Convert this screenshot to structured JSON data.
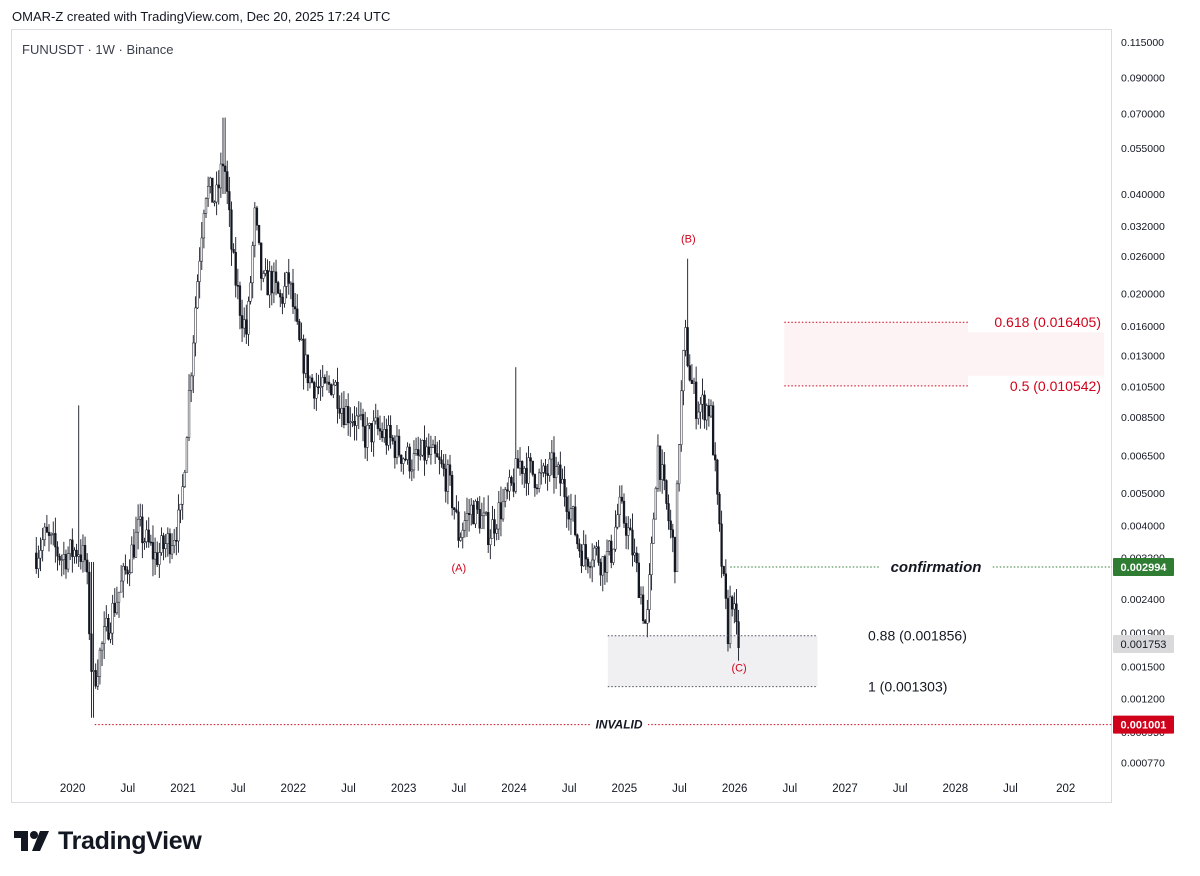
{
  "header": {
    "text": "OMAR-Z created with TradingView.com, Dec 20, 2025 17:24 UTC"
  },
  "symbol": {
    "text": "FUNUSDT · 1W · Binance"
  },
  "footer": {
    "brand": "TradingView"
  },
  "colors": {
    "red": "#d0021b",
    "green": "#2e7d32",
    "candle": "#131722",
    "zone_gray": "#f0f0f2",
    "zone_pink": "#fdf3f5"
  },
  "chart_data": {
    "type": "candlestick",
    "scale": "log",
    "ylim": [
      0.00072,
      0.125
    ],
    "xlim": [
      2019.45,
      2029.42
    ],
    "y_ticks": [
      "0.115000",
      "0.090000",
      "0.070000",
      "0.055000",
      "0.040000",
      "0.032000",
      "0.026000",
      "0.020000",
      "0.016000",
      "0.013000",
      "0.010500",
      "0.008500",
      "0.006500",
      "0.005000",
      "0.004000",
      "0.003200",
      "0.002400",
      "0.001900",
      "0.001500",
      "0.001200",
      "0.000950",
      "0.000770"
    ],
    "x_ticks": [
      {
        "t": 2020.0,
        "label": "2020"
      },
      {
        "t": 2020.5,
        "label": "Jul"
      },
      {
        "t": 2021.0,
        "label": "2021"
      },
      {
        "t": 2021.5,
        "label": "Jul"
      },
      {
        "t": 2022.0,
        "label": "2022"
      },
      {
        "t": 2022.5,
        "label": "Jul"
      },
      {
        "t": 2023.0,
        "label": "2023"
      },
      {
        "t": 2023.5,
        "label": "Jul"
      },
      {
        "t": 2024.0,
        "label": "2024"
      },
      {
        "t": 2024.5,
        "label": "Jul"
      },
      {
        "t": 2025.0,
        "label": "2025"
      },
      {
        "t": 2025.5,
        "label": "Jul"
      },
      {
        "t": 2026.0,
        "label": "2026"
      },
      {
        "t": 2026.5,
        "label": "Jul"
      },
      {
        "t": 2027.0,
        "label": "2027"
      },
      {
        "t": 2027.5,
        "label": "Jul"
      },
      {
        "t": 2028.0,
        "label": "2028"
      },
      {
        "t": 2028.5,
        "label": "Jul"
      },
      {
        "t": 2029.0,
        "label": "202"
      }
    ],
    "price_path": [
      [
        2019.67,
        0.0033
      ],
      [
        2019.75,
        0.0037
      ],
      [
        2019.9,
        0.0032
      ],
      [
        2020.05,
        0.0034
      ],
      [
        2020.12,
        0.0031
      ],
      [
        2020.18,
        0.0013
      ],
      [
        2020.24,
        0.0016
      ],
      [
        2020.32,
        0.002
      ],
      [
        2020.45,
        0.0027
      ],
      [
        2020.6,
        0.0039
      ],
      [
        2020.75,
        0.0032
      ],
      [
        2020.9,
        0.0037
      ],
      [
        2020.98,
        0.0042
      ],
      [
        2021.05,
        0.0095
      ],
      [
        2021.12,
        0.02
      ],
      [
        2021.2,
        0.042
      ],
      [
        2021.3,
        0.038
      ],
      [
        2021.37,
        0.052
      ],
      [
        2021.45,
        0.025
      ],
      [
        2021.52,
        0.018
      ],
      [
        2021.58,
        0.015
      ],
      [
        2021.65,
        0.034
      ],
      [
        2021.72,
        0.021
      ],
      [
        2021.8,
        0.022
      ],
      [
        2021.88,
        0.019
      ],
      [
        2021.96,
        0.022
      ],
      [
        2022.05,
        0.014
      ],
      [
        2022.15,
        0.011
      ],
      [
        2022.28,
        0.01
      ],
      [
        2022.36,
        0.011
      ],
      [
        2022.45,
        0.009
      ],
      [
        2022.55,
        0.0085
      ],
      [
        2022.65,
        0.0074
      ],
      [
        2022.75,
        0.0078
      ],
      [
        2022.88,
        0.0072
      ],
      [
        2023.0,
        0.0065
      ],
      [
        2023.1,
        0.0062
      ],
      [
        2023.2,
        0.0066
      ],
      [
        2023.3,
        0.0062
      ],
      [
        2023.4,
        0.0055
      ],
      [
        2023.46,
        0.0045
      ],
      [
        2023.5,
        0.0037
      ],
      [
        2023.55,
        0.0041
      ],
      [
        2023.62,
        0.0045
      ],
      [
        2023.7,
        0.0042
      ],
      [
        2023.78,
        0.0038
      ],
      [
        2023.86,
        0.0044
      ],
      [
        2023.92,
        0.0047
      ],
      [
        2023.98,
        0.0052
      ],
      [
        2024.05,
        0.0062
      ],
      [
        2024.15,
        0.0058
      ],
      [
        2024.25,
        0.0055
      ],
      [
        2024.35,
        0.006
      ],
      [
        2024.45,
        0.0052
      ],
      [
        2024.52,
        0.0044
      ],
      [
        2024.58,
        0.0035
      ],
      [
        2024.65,
        0.0032
      ],
      [
        2024.72,
        0.0034
      ],
      [
        2024.8,
        0.0031
      ],
      [
        2024.88,
        0.0033
      ],
      [
        2024.95,
        0.0045
      ],
      [
        2025.02,
        0.004
      ],
      [
        2025.08,
        0.0033
      ],
      [
        2025.14,
        0.0026
      ],
      [
        2025.2,
        0.0019
      ],
      [
        2025.25,
        0.0034
      ],
      [
        2025.3,
        0.007
      ],
      [
        2025.36,
        0.005
      ],
      [
        2025.42,
        0.0038
      ],
      [
        2025.46,
        0.0032
      ],
      [
        2025.5,
        0.008
      ],
      [
        2025.55,
        0.015
      ],
      [
        2025.6,
        0.011
      ],
      [
        2025.65,
        0.0093
      ],
      [
        2025.72,
        0.0092
      ],
      [
        2025.78,
        0.009
      ],
      [
        2025.82,
        0.006
      ],
      [
        2025.86,
        0.0038
      ],
      [
        2025.9,
        0.0026
      ],
      [
        2025.94,
        0.0019
      ],
      [
        2025.97,
        0.0026
      ],
      [
        2026.01,
        0.0019
      ],
      [
        2026.04,
        0.00175
      ]
    ],
    "extremes": [
      {
        "t": 2020.18,
        "high": 0.0031,
        "low": 0.00105
      },
      {
        "t": 2020.06,
        "high": 0.0092,
        "low": 0.0031
      },
      {
        "t": 2021.37,
        "high": 0.068,
        "low": 0.04
      },
      {
        "t": 2025.58,
        "high": 0.0255,
        "low": 0.014
      },
      {
        "t": 2024.02,
        "high": 0.012,
        "low": 0.0055
      },
      {
        "t": 2026.04,
        "high": 0.0019,
        "low": 0.00163
      }
    ],
    "wave_labels": [
      {
        "text": "(A)",
        "t": 2023.5,
        "y": 0.0029
      },
      {
        "text": "(B)",
        "t": 2025.58,
        "y": 0.0285
      },
      {
        "text": "(C)",
        "t": 2026.04,
        "y": 0.00145
      }
    ],
    "levels": [
      {
        "label": "0.618 (0.016405)",
        "value": 0.016405,
        "color": "red",
        "t_start": 2026.45,
        "t_end": 2029.35
      },
      {
        "label": "0.5 (0.010542)",
        "value": 0.010542,
        "color": "red",
        "t_start": 2026.45,
        "t_end": 2029.35
      },
      {
        "label": "confirmation",
        "value": 0.002994,
        "color": "green",
        "t_start": 2025.96,
        "t_end": 2029.42
      },
      {
        "label": "0.88 (0.001856)",
        "value": 0.001856,
        "color": "dark",
        "t_start": 2024.85,
        "t_end": 2026.75
      },
      {
        "label": "1 (0.001303)",
        "value": 0.001303,
        "color": "dark",
        "t_start": 2024.85,
        "t_end": 2026.75
      },
      {
        "label": "INVALID",
        "value": 0.001001,
        "color": "red",
        "t_start": 2020.2,
        "t_end": 2029.42
      }
    ],
    "price_tags": [
      {
        "text": "0.002994",
        "value": 0.002994,
        "color": "green"
      },
      {
        "text": "0.001753",
        "value": 0.001753,
        "color": "gray"
      },
      {
        "text": "0.001001",
        "value": 0.001001,
        "color": "red"
      }
    ]
  }
}
